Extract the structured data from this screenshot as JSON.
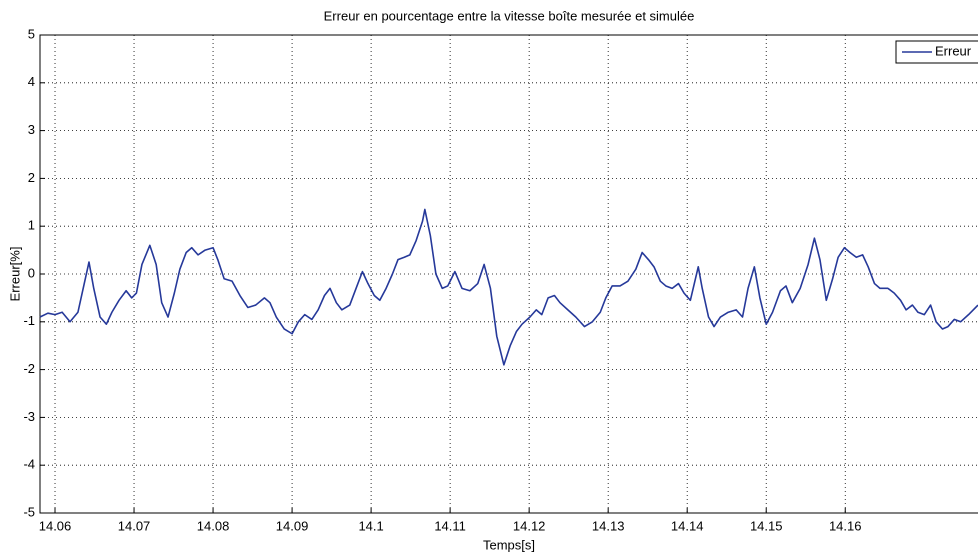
{
  "chart_data": {
    "type": "line",
    "title": "Erreur en pourcentage entre la vitesse boîte mesurée et simulée",
    "xlabel": "Temps[s]",
    "ylabel": "Erreur[%]",
    "x": [
      14.0581,
      14.0591,
      14.06,
      14.0609,
      14.0619,
      14.0629,
      14.0637,
      14.0643,
      14.0649,
      14.0657,
      14.0665,
      14.0672,
      14.0681,
      14.069,
      14.0697,
      14.0703,
      14.071,
      14.072,
      14.0728,
      14.0735,
      14.0743,
      14.0751,
      14.0758,
      14.0766,
      14.0773,
      14.0781,
      14.079,
      14.08,
      14.0806,
      14.0814,
      14.0824,
      14.0834,
      14.0844,
      14.0854,
      14.0865,
      14.0872,
      14.088,
      14.089,
      14.09,
      14.0908,
      14.0916,
      14.0925,
      14.0933,
      14.0941,
      14.0948,
      14.0956,
      14.0963,
      14.0973,
      14.0981,
      14.0989,
      14.0996,
      14.1004,
      14.1011,
      14.1019,
      14.1027,
      14.1034,
      14.1042,
      14.1049,
      14.1057,
      14.1065,
      14.1068,
      14.1075,
      14.1082,
      14.109,
      14.1097,
      14.1106,
      14.1115,
      14.1125,
      14.1135,
      14.1143,
      14.1151,
      14.1159,
      14.1168,
      14.1176,
      14.1184,
      14.1191,
      14.1201,
      14.1209,
      14.1216,
      14.1224,
      14.1232,
      14.1239,
      14.1249,
      14.1259,
      14.127,
      14.128,
      14.129,
      14.1297,
      14.1305,
      14.1315,
      14.1325,
      14.1335,
      14.1343,
      14.1351,
      14.1358,
      14.1366,
      14.1373,
      14.1381,
      14.1389,
      14.1396,
      14.1404,
      14.1409,
      14.1414,
      14.1419,
      14.1427,
      14.1434,
      14.1442,
      14.1452,
      14.1462,
      14.147,
      14.1477,
      14.1485,
      14.1492,
      14.15,
      14.1508,
      14.1518,
      14.1525,
      14.1533,
      14.1543,
      14.1553,
      14.1561,
      14.1568,
      14.1576,
      14.1584,
      14.1591,
      14.1599,
      14.1606,
      14.1614,
      14.1622,
      14.1629,
      14.1637,
      14.1644,
      14.1654,
      14.1662,
      14.167,
      14.1677,
      14.1685,
      14.1692,
      14.17,
      14.1708,
      14.1715,
      14.1723,
      14.173,
      14.1738,
      14.1746,
      14.1756,
      14.1768
    ],
    "series": [
      {
        "name": "Erreur",
        "color": "#26399a",
        "values": [
          -0.9,
          -0.82,
          -0.85,
          -0.8,
          -1.0,
          -0.8,
          -0.2,
          0.25,
          -0.3,
          -0.9,
          -1.05,
          -0.8,
          -0.55,
          -0.35,
          -0.5,
          -0.4,
          0.2,
          0.6,
          0.2,
          -0.6,
          -0.9,
          -0.4,
          0.1,
          0.45,
          0.55,
          0.4,
          0.5,
          0.55,
          0.3,
          -0.1,
          -0.15,
          -0.45,
          -0.7,
          -0.65,
          -0.5,
          -0.6,
          -0.9,
          -1.15,
          -1.25,
          -1.0,
          -0.85,
          -0.95,
          -0.75,
          -0.45,
          -0.3,
          -0.6,
          -0.75,
          -0.65,
          -0.3,
          0.05,
          -0.2,
          -0.45,
          -0.55,
          -0.3,
          0.0,
          0.3,
          0.35,
          0.4,
          0.7,
          1.1,
          1.35,
          0.8,
          0.0,
          -0.3,
          -0.25,
          0.05,
          -0.3,
          -0.35,
          -0.2,
          0.2,
          -0.3,
          -1.3,
          -1.9,
          -1.5,
          -1.2,
          -1.05,
          -0.9,
          -0.75,
          -0.85,
          -0.5,
          -0.45,
          -0.6,
          -0.75,
          -0.9,
          -1.1,
          -1.0,
          -0.8,
          -0.5,
          -0.25,
          -0.25,
          -0.15,
          0.1,
          0.45,
          0.3,
          0.15,
          -0.15,
          -0.25,
          -0.3,
          -0.2,
          -0.4,
          -0.55,
          -0.2,
          0.15,
          -0.3,
          -0.9,
          -1.1,
          -0.9,
          -0.8,
          -0.75,
          -0.9,
          -0.3,
          0.15,
          -0.5,
          -1.05,
          -0.8,
          -0.35,
          -0.25,
          -0.6,
          -0.3,
          0.2,
          0.75,
          0.3,
          -0.55,
          -0.1,
          0.35,
          0.55,
          0.45,
          0.35,
          0.4,
          0.15,
          -0.2,
          -0.3,
          -0.3,
          -0.4,
          -0.55,
          -0.75,
          -0.65,
          -0.8,
          -0.85,
          -0.65,
          -1.0,
          -1.15,
          -1.1,
          -0.95,
          -1.0,
          -0.85,
          -0.65
        ]
      }
    ],
    "xlim": [
      14.0581,
      14.1768
    ],
    "xticks": [
      14.06,
      14.07,
      14.08,
      14.09,
      14.1,
      14.11,
      14.12,
      14.13,
      14.14,
      14.15,
      14.16
    ],
    "ylim": [
      -5,
      5
    ],
    "yticks": [
      -5,
      -4,
      -3,
      -2,
      -1,
      0,
      1,
      2,
      3,
      4,
      5
    ],
    "grid": true,
    "legend": "northeast"
  }
}
